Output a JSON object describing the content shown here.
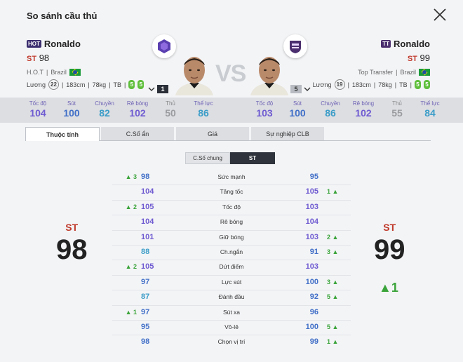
{
  "title": "So sánh cầu thủ",
  "left": {
    "season": "HOT",
    "name": "Ronaldo",
    "pos": "ST",
    "ovr": "98",
    "tags": "H.O.T",
    "nation": "Brazil",
    "salary_label": "Lương",
    "salary": "22",
    "height": "183cm",
    "weight": "78kg",
    "build": "TB",
    "foot_left": "5",
    "foot_right": "5",
    "level": "1"
  },
  "right": {
    "season": "TT",
    "name": "Ronaldo",
    "pos": "ST",
    "ovr": "99",
    "tags": "Top Transfer",
    "nation": "Brazil",
    "salary_label": "Lương",
    "salary": "19",
    "height": "183cm",
    "weight": "78kg",
    "build": "TB",
    "foot_left": "5",
    "foot_right": "5",
    "level": "5"
  },
  "vs": "VS",
  "summary_left": [
    {
      "label": "Tốc độ",
      "value": "104",
      "color": "#6f5bd1"
    },
    {
      "label": "Sút",
      "value": "100",
      "color": "#4270c8"
    },
    {
      "label": "Chuyền",
      "value": "82",
      "color": "#3c9dc8"
    },
    {
      "label": "Rê bóng",
      "value": "102",
      "color": "#6f5bd1"
    },
    {
      "label": "Thủ",
      "value": "50",
      "color": "#9a9ca0"
    },
    {
      "label": "Thể lực",
      "value": "86",
      "color": "#3c9dc8"
    }
  ],
  "summary_right": [
    {
      "label": "Tốc độ",
      "value": "103",
      "color": "#6f5bd1"
    },
    {
      "label": "Sút",
      "value": "100",
      "color": "#4270c8"
    },
    {
      "label": "Chuyền",
      "value": "86",
      "color": "#3c9dc8"
    },
    {
      "label": "Rê bóng",
      "value": "102",
      "color": "#6f5bd1"
    },
    {
      "label": "Thủ",
      "value": "55",
      "color": "#9a9ca0"
    },
    {
      "label": "Thể lực",
      "value": "84",
      "color": "#3c9dc8"
    }
  ],
  "tabs": [
    "Thuộc tính",
    "C.Số ẩn",
    "Giá",
    "Sự nghiệp CLB"
  ],
  "segment": {
    "option1": "C.Số chung",
    "option2": "ST"
  },
  "rows": [
    {
      "ld": "▲ 3",
      "lv": "98",
      "lc": "#4270c8",
      "name": "Sức mạnh",
      "rv": "95",
      "rc": "#4270c8",
      "rd": ""
    },
    {
      "ld": "",
      "lv": "104",
      "lc": "#6f5bd1",
      "name": "Tăng tốc",
      "rv": "105",
      "rc": "#6f5bd1",
      "rd": "1 ▲"
    },
    {
      "ld": "▲ 2",
      "lv": "105",
      "lc": "#6f5bd1",
      "name": "Tốc độ",
      "rv": "103",
      "rc": "#6f5bd1",
      "rd": ""
    },
    {
      "ld": "",
      "lv": "104",
      "lc": "#6f5bd1",
      "name": "Rê bóng",
      "rv": "104",
      "rc": "#6f5bd1",
      "rd": ""
    },
    {
      "ld": "",
      "lv": "101",
      "lc": "#6f5bd1",
      "name": "Giữ bóng",
      "rv": "103",
      "rc": "#6f5bd1",
      "rd": "2 ▲"
    },
    {
      "ld": "",
      "lv": "88",
      "lc": "#3c9dc8",
      "name": "Ch.ngắn",
      "rv": "91",
      "rc": "#4270c8",
      "rd": "3 ▲"
    },
    {
      "ld": "▲ 2",
      "lv": "105",
      "lc": "#6f5bd1",
      "name": "Dứt điểm",
      "rv": "103",
      "rc": "#6f5bd1",
      "rd": ""
    },
    {
      "ld": "",
      "lv": "97",
      "lc": "#4270c8",
      "name": "Lực sút",
      "rv": "100",
      "rc": "#4270c8",
      "rd": "3 ▲"
    },
    {
      "ld": "",
      "lv": "87",
      "lc": "#3c9dc8",
      "name": "Đánh đầu",
      "rv": "92",
      "rc": "#4270c8",
      "rd": "5 ▲"
    },
    {
      "ld": "▲ 1",
      "lv": "97",
      "lc": "#4270c8",
      "name": "Sút xa",
      "rv": "96",
      "rc": "#4270c8",
      "rd": ""
    },
    {
      "ld": "",
      "lv": "95",
      "lc": "#4270c8",
      "name": "Vô-lê",
      "rv": "100",
      "rc": "#4270c8",
      "rd": "5 ▲"
    },
    {
      "ld": "",
      "lv": "98",
      "lc": "#4270c8",
      "name": "Chọn vị trí",
      "rv": "99",
      "rc": "#4270c8",
      "rd": "1 ▲"
    }
  ],
  "big_left": {
    "pos": "ST",
    "ovr": "98"
  },
  "big_right": {
    "pos": "ST",
    "ovr": "99",
    "delta": "▲1"
  }
}
